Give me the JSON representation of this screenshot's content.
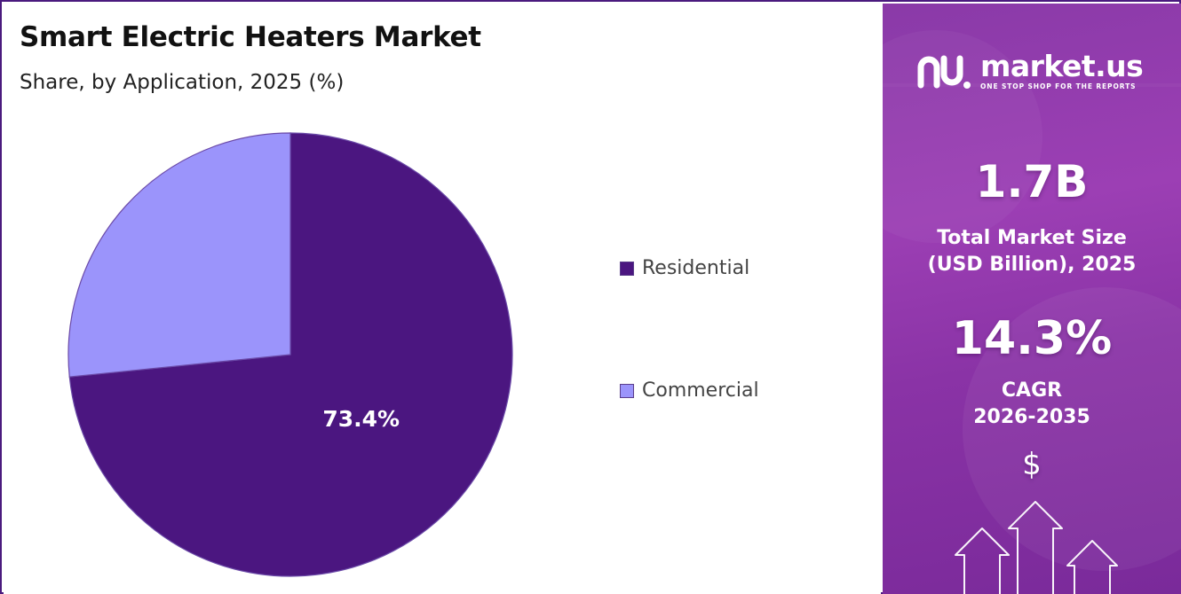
{
  "header": {
    "title": "Smart Electric Heaters Market",
    "subtitle": "Share, by Application, 2025 (%)"
  },
  "chart_data": {
    "type": "pie",
    "title": "Smart Electric Heaters Market",
    "subtitle": "Share, by Application, 2025 (%)",
    "categories": [
      "Residential",
      "Commercial"
    ],
    "values": [
      73.4,
      26.6
    ],
    "data_labels": [
      "73.4%",
      ""
    ],
    "colors": [
      "#4b1680",
      "#9b94fb"
    ],
    "legend": {
      "placement": "right",
      "entries": [
        "Residential",
        "Commercial"
      ]
    }
  },
  "sidebar": {
    "brand_name": "market.us",
    "brand_tagline": "ONE STOP SHOP FOR THE REPORTS",
    "market_size_value": "1.7B",
    "market_size_label_line1": "Total Market Size",
    "market_size_label_line2": "(USD Billion), 2025",
    "cagr_value": "14.3%",
    "cagr_label_line1": "CAGR",
    "cagr_label_line2": "2026-2035",
    "currency_symbol": "$",
    "icons": [
      "market-us-logo-icon",
      "growth-arrows-icon"
    ]
  },
  "colors": {
    "frame_border": "#4a1a7e",
    "sidebar_gradient_top": "#8a3aa8",
    "sidebar_gradient_bottom": "#7a2a9a"
  }
}
